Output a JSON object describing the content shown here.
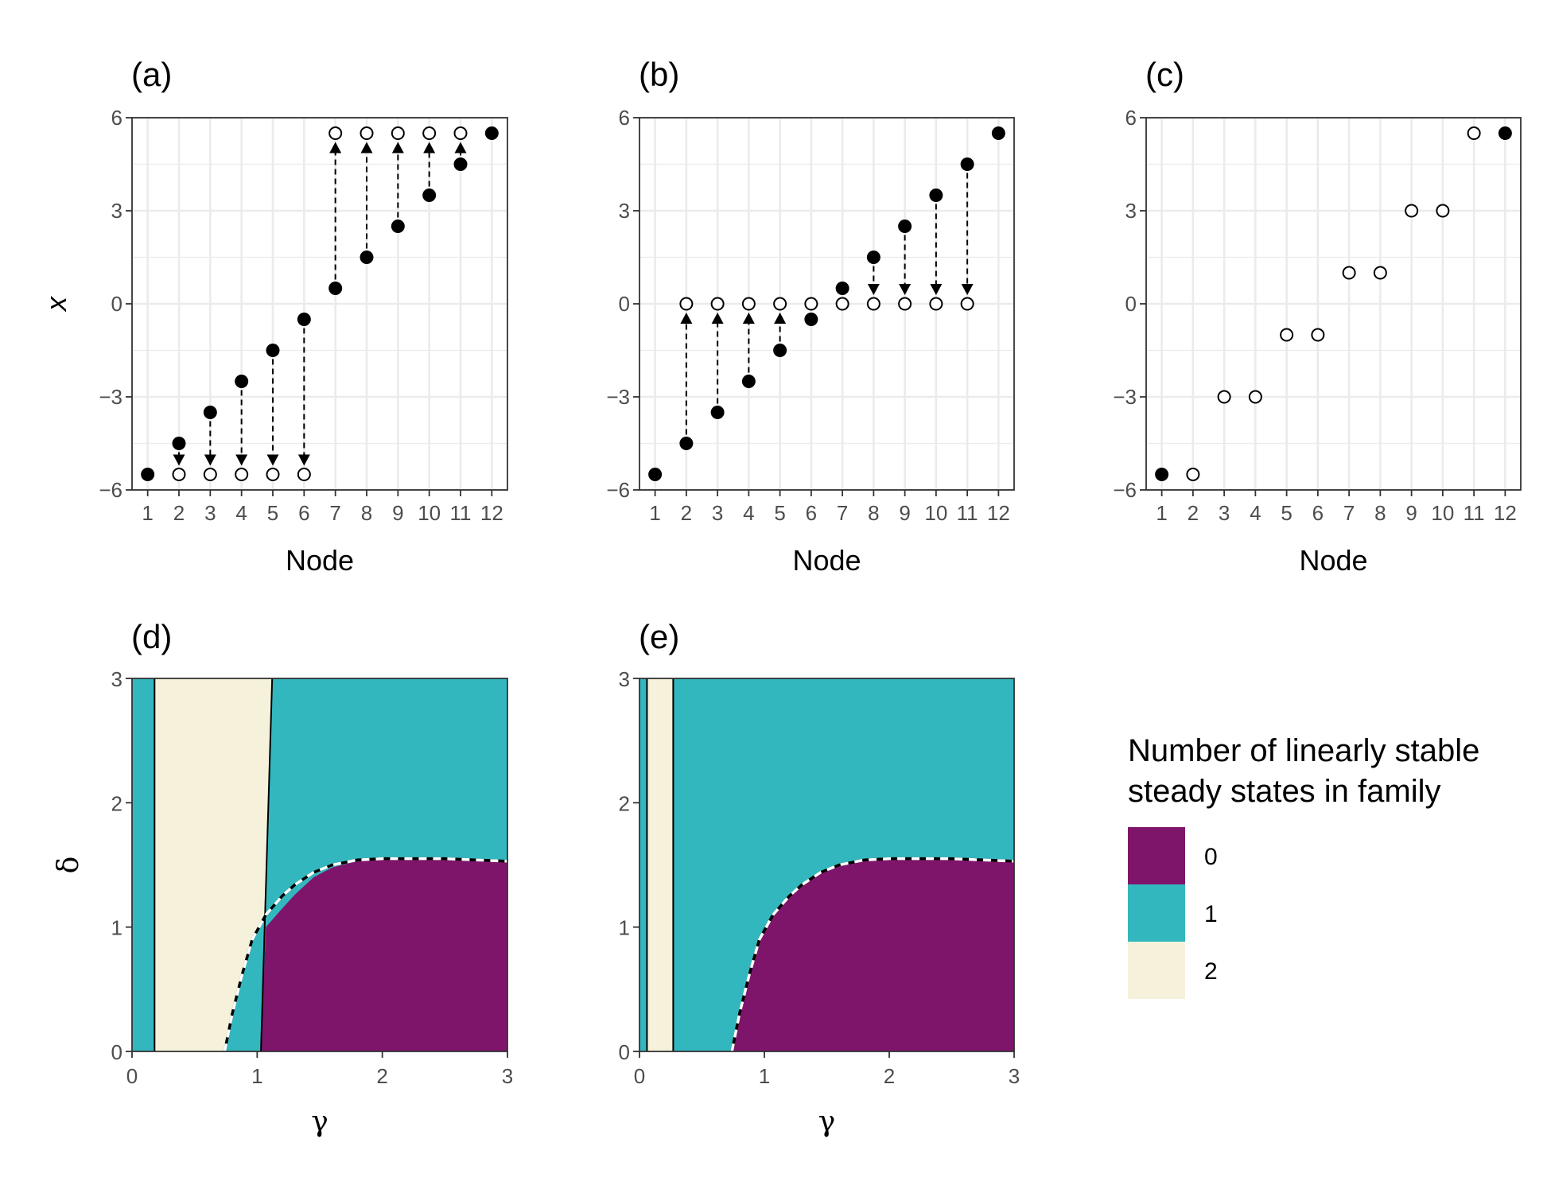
{
  "chart_data": [
    {
      "panel": "(a)",
      "type": "scatter",
      "xlabel": "Node",
      "ylabel": "x",
      "xlim": [
        0.5,
        12.5
      ],
      "ylim": [
        -6,
        6
      ],
      "x_ticks": [
        "1",
        "2",
        "3",
        "4",
        "5",
        "6",
        "7",
        "8",
        "9",
        "10",
        "11",
        "12"
      ],
      "y_ticks": [
        -6,
        -3,
        0,
        3,
        6
      ],
      "y_tick_labels": [
        "−6",
        "−3",
        "0",
        "3",
        "6"
      ],
      "filled_points": [
        [
          1,
          -5.5
        ],
        [
          2,
          -4.5
        ],
        [
          3,
          -3.5
        ],
        [
          4,
          -2.5
        ],
        [
          5,
          -1.5
        ],
        [
          6,
          -0.5
        ],
        [
          7,
          0.5
        ],
        [
          8,
          1.5
        ],
        [
          9,
          2.5
        ],
        [
          10,
          3.5
        ],
        [
          11,
          4.5
        ],
        [
          12,
          5.5
        ]
      ],
      "open_points": [
        [
          2,
          -5.5
        ],
        [
          3,
          -5.5
        ],
        [
          4,
          -5.5
        ],
        [
          5,
          -5.5
        ],
        [
          6,
          -5.5
        ],
        [
          7,
          5.5
        ],
        [
          8,
          5.5
        ],
        [
          9,
          5.5
        ],
        [
          10,
          5.5
        ],
        [
          11,
          5.5
        ]
      ],
      "arrows": [
        [
          2,
          -4.5,
          -5.5
        ],
        [
          3,
          -3.5,
          -5.5
        ],
        [
          4,
          -2.5,
          -5.5
        ],
        [
          5,
          -1.5,
          -5.5
        ],
        [
          6,
          -0.5,
          -5.5
        ],
        [
          7,
          0.5,
          5.5
        ],
        [
          8,
          1.5,
          5.5
        ],
        [
          9,
          2.5,
          5.5
        ],
        [
          10,
          3.5,
          5.5
        ],
        [
          11,
          4.5,
          5.5
        ]
      ],
      "grid": true
    },
    {
      "panel": "(b)",
      "type": "scatter",
      "xlabel": "Node",
      "ylabel": "",
      "xlim": [
        0.5,
        12.5
      ],
      "ylim": [
        -6,
        6
      ],
      "x_ticks": [
        "1",
        "2",
        "3",
        "4",
        "5",
        "6",
        "7",
        "8",
        "9",
        "10",
        "11",
        "12"
      ],
      "y_ticks": [
        -6,
        -3,
        0,
        3,
        6
      ],
      "y_tick_labels": [
        "−6",
        "−3",
        "0",
        "3",
        "6"
      ],
      "filled_points": [
        [
          1,
          -5.5
        ],
        [
          2,
          -4.5
        ],
        [
          3,
          -3.5
        ],
        [
          4,
          -2.5
        ],
        [
          5,
          -1.5
        ],
        [
          6,
          -0.5
        ],
        [
          7,
          0.5
        ],
        [
          8,
          1.5
        ],
        [
          9,
          2.5
        ],
        [
          10,
          3.5
        ],
        [
          11,
          4.5
        ],
        [
          12,
          5.5
        ]
      ],
      "open_points": [
        [
          2,
          0
        ],
        [
          3,
          0
        ],
        [
          4,
          0
        ],
        [
          5,
          0
        ],
        [
          6,
          0
        ],
        [
          7,
          0
        ],
        [
          8,
          0
        ],
        [
          9,
          0
        ],
        [
          10,
          0
        ],
        [
          11,
          0
        ]
      ],
      "arrows": [
        [
          2,
          -4.5,
          0
        ],
        [
          3,
          -3.5,
          0
        ],
        [
          4,
          -2.5,
          0
        ],
        [
          5,
          -1.5,
          0
        ],
        [
          8,
          1.5,
          0
        ],
        [
          9,
          2.5,
          0
        ],
        [
          10,
          3.5,
          0
        ],
        [
          11,
          4.5,
          0
        ]
      ],
      "grid": true
    },
    {
      "panel": "(c)",
      "type": "scatter",
      "xlabel": "Node",
      "ylabel": "",
      "xlim": [
        0.5,
        12.5
      ],
      "ylim": [
        -6,
        6
      ],
      "x_ticks": [
        "1",
        "2",
        "3",
        "4",
        "5",
        "6",
        "7",
        "8",
        "9",
        "10",
        "11",
        "12"
      ],
      "y_ticks": [
        -6,
        -3,
        0,
        3,
        6
      ],
      "y_tick_labels": [
        "−6",
        "−3",
        "0",
        "3",
        "6"
      ],
      "filled_points": [
        [
          1,
          -5.5
        ],
        [
          12,
          5.5
        ]
      ],
      "open_points": [
        [
          2,
          -5.5
        ],
        [
          3,
          -3
        ],
        [
          4,
          -3
        ],
        [
          5,
          -1
        ],
        [
          6,
          -1
        ],
        [
          7,
          1
        ],
        [
          8,
          1
        ],
        [
          9,
          3
        ],
        [
          10,
          3
        ],
        [
          11,
          5.5
        ]
      ],
      "arrows": [],
      "grid": true
    },
    {
      "panel": "(d)",
      "type": "heatmap",
      "xlabel": "γ",
      "ylabel": "δ",
      "xlim": [
        0,
        3
      ],
      "ylim": [
        0,
        3
      ],
      "x_ticks": [
        "0",
        "1",
        "2",
        "3"
      ],
      "y_ticks": [
        "0",
        "1",
        "2",
        "3"
      ],
      "regions": [
        {
          "value": "1",
          "polygon": [
            [
              0,
              0
            ],
            [
              0.18,
              0
            ],
            [
              0.18,
              3
            ],
            [
              0,
              3
            ]
          ]
        },
        {
          "value": "2",
          "polygon": [
            [
              0.18,
              0
            ],
            [
              0.74,
              0
            ],
            [
              0.8,
              0.3
            ],
            [
              0.88,
              0.62
            ],
            [
              0.96,
              0.9
            ],
            [
              1.07,
              1.1
            ],
            [
              1.12,
              3
            ],
            [
              0.18,
              3
            ]
          ]
        },
        {
          "value": "0",
          "polygon": [
            [
              1.03,
              0
            ],
            [
              3,
              0
            ],
            [
              3,
              1.53
            ],
            [
              2.5,
              1.55
            ],
            [
              2,
              1.55
            ],
            [
              1.8,
              1.53
            ],
            [
              1.6,
              1.48
            ],
            [
              1.45,
              1.4
            ],
            [
              1.3,
              1.26
            ],
            [
              1.2,
              1.15
            ],
            [
              1.07,
              1.0
            ]
          ]
        }
      ],
      "solid_boundaries": [
        [
          [
            0.18,
            0
          ],
          [
            0.18,
            3
          ]
        ],
        [
          [
            1.03,
            0
          ],
          [
            1.12,
            3
          ]
        ]
      ],
      "dashed_boundary": [
        [
          0.74,
          0
        ],
        [
          0.8,
          0.3
        ],
        [
          0.88,
          0.62
        ],
        [
          0.96,
          0.9
        ],
        [
          1.07,
          1.1
        ],
        [
          1.2,
          1.25
        ],
        [
          1.3,
          1.34
        ],
        [
          1.45,
          1.44
        ],
        [
          1.6,
          1.5
        ],
        [
          1.8,
          1.54
        ],
        [
          2,
          1.55
        ],
        [
          2.5,
          1.55
        ],
        [
          3,
          1.53
        ]
      ]
    },
    {
      "panel": "(e)",
      "type": "heatmap",
      "xlabel": "γ",
      "ylabel": "",
      "xlim": [
        0,
        3
      ],
      "ylim": [
        0,
        3
      ],
      "x_ticks": [
        "0",
        "1",
        "2",
        "3"
      ],
      "y_ticks": [
        "0",
        "1",
        "2",
        "3"
      ],
      "regions": [
        {
          "value": "1",
          "polygon": [
            [
              0,
              0
            ],
            [
              0.06,
              0
            ],
            [
              0.06,
              3
            ],
            [
              0,
              3
            ]
          ]
        },
        {
          "value": "2",
          "polygon": [
            [
              0.06,
              0
            ],
            [
              0.27,
              0
            ],
            [
              0.27,
              3
            ],
            [
              0.06,
              3
            ]
          ]
        },
        {
          "value": "0",
          "polygon": [
            [
              0.74,
              0
            ],
            [
              0.8,
              0.3
            ],
            [
              0.88,
              0.62
            ],
            [
              0.96,
              0.9
            ],
            [
              1.07,
              1.1
            ],
            [
              1.2,
              1.25
            ],
            [
              1.3,
              1.34
            ],
            [
              1.45,
              1.44
            ],
            [
              1.6,
              1.5
            ],
            [
              1.8,
              1.54
            ],
            [
              2,
              1.55
            ],
            [
              2.5,
              1.55
            ],
            [
              3,
              1.53
            ],
            [
              3,
              0
            ]
          ]
        }
      ],
      "solid_boundaries": [
        [
          [
            0.06,
            0
          ],
          [
            0.06,
            3
          ]
        ],
        [
          [
            0.27,
            0
          ],
          [
            0.27,
            3
          ]
        ]
      ],
      "dashed_boundary": [
        [
          0.74,
          0
        ],
        [
          0.8,
          0.3
        ],
        [
          0.88,
          0.62
        ],
        [
          0.96,
          0.9
        ],
        [
          1.07,
          1.1
        ],
        [
          1.2,
          1.25
        ],
        [
          1.3,
          1.34
        ],
        [
          1.45,
          1.44
        ],
        [
          1.6,
          1.5
        ],
        [
          1.8,
          1.54
        ],
        [
          2,
          1.55
        ],
        [
          2.5,
          1.55
        ],
        [
          3,
          1.53
        ]
      ]
    }
  ],
  "legend": {
    "title_line1": "Number of linearly stable",
    "title_line2": "steady states in family",
    "entries": [
      {
        "label": "0",
        "color": "#7f156b"
      },
      {
        "label": "1",
        "color": "#33b7bf"
      },
      {
        "label": "2",
        "color": "#f6f1da"
      }
    ]
  },
  "colors": {
    "zero": "#7f156b",
    "one": "#33b7bf",
    "two": "#f6f1da",
    "grid": "#ebebeb",
    "point": "#000000"
  }
}
